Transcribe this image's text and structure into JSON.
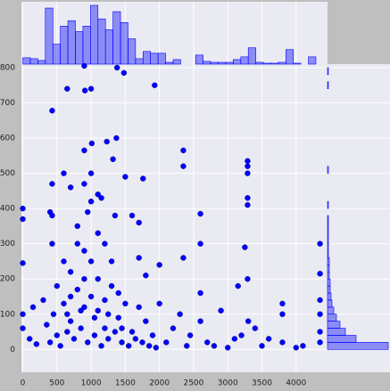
{
  "chart_data": [
    {
      "type": "scatter",
      "color": "#0000ff",
      "grid": true,
      "xlim": [
        -20,
        4460
      ],
      "ylim": [
        -65,
        810
      ],
      "xticks": [
        0,
        500,
        1000,
        1500,
        2000,
        2500,
        3000,
        3500,
        4000
      ],
      "yticks": [
        0,
        100,
        200,
        300,
        400,
        500,
        600,
        700,
        800
      ],
      "x": [
        900,
        1380,
        1480,
        650,
        910,
        1000,
        1930,
        430,
        1010,
        1230,
        1370,
        900,
        1320,
        2350,
        2350,
        3290,
        3290,
        3290,
        1500,
        1760,
        600,
        1000,
        900,
        700,
        430,
        1100,
        1150,
        1000,
        0,
        0,
        400,
        430,
        950,
        1350,
        2600,
        1600,
        3290,
        3290,
        1700,
        800,
        4350,
        2600,
        3250,
        430,
        1200,
        2350,
        600,
        1700,
        0,
        3150,
        3290,
        4350,
        2000,
        900,
        1100,
        3800,
        3800,
        4350,
        4350,
        2600,
        2900,
        3100,
        3400,
        2450,
        1800,
        700,
        300,
        150,
        0,
        0,
        100,
        200,
        350,
        500,
        600,
        700,
        800,
        900,
        1000,
        1100,
        1200,
        1300,
        1400,
        1500,
        1600,
        1700,
        1800,
        1900,
        2000,
        2100,
        2200,
        2300,
        2400,
        2600,
        2700,
        2800,
        3000,
        3200,
        3300,
        3500,
        3600,
        3800,
        4000,
        4100,
        4350,
        4350,
        400,
        500,
        550,
        650,
        750,
        850,
        950,
        1050,
        1150,
        1250,
        1350,
        1450,
        1550,
        1650,
        1750,
        1850,
        1950,
        450,
        650,
        850,
        1050,
        1250,
        1450,
        1000,
        800,
        1300,
        1100,
        900,
        700,
        1200,
        1400
      ],
      "y": [
        805,
        800,
        785,
        740,
        735,
        740,
        750,
        678,
        585,
        590,
        600,
        565,
        540,
        565,
        520,
        535,
        520,
        500,
        490,
        485,
        500,
        500,
        470,
        460,
        470,
        440,
        430,
        420,
        400,
        370,
        390,
        380,
        390,
        380,
        385,
        380,
        430,
        410,
        360,
        350,
        300,
        300,
        290,
        300,
        300,
        260,
        250,
        260,
        245,
        180,
        200,
        215,
        240,
        280,
        330,
        130,
        100,
        140,
        100,
        160,
        110,
        30,
        60,
        40,
        210,
        220,
        140,
        120,
        100,
        60,
        30,
        15,
        70,
        180,
        130,
        80,
        170,
        200,
        150,
        110,
        60,
        180,
        90,
        130,
        50,
        120,
        80,
        40,
        130,
        20,
        60,
        100,
        10,
        80,
        20,
        10,
        5,
        40,
        80,
        10,
        30,
        20,
        5,
        10,
        50,
        20,
        20,
        40,
        10,
        50,
        30,
        60,
        20,
        40,
        10,
        30,
        50,
        20,
        10,
        30,
        20,
        10,
        5,
        100,
        100,
        110,
        90,
        100,
        60,
        250,
        300,
        250,
        200,
        120,
        150,
        140,
        160
      ]
    },
    {
      "type": "histogram",
      "orientation": "vertical",
      "color": "#0000ff",
      "bins": [
        0,
        110,
        220,
        330,
        440,
        550,
        660,
        770,
        880,
        990,
        1100,
        1210,
        1320,
        1430,
        1540,
        1650,
        1760,
        1870,
        1980,
        2090,
        2200,
        2310,
        2420,
        2530,
        2640,
        2750,
        2860,
        2970,
        3080,
        3190,
        3300,
        3410,
        3520,
        3630,
        3740,
        3850,
        3960,
        4070,
        4180,
        4290,
        4400
      ],
      "counts": [
        7,
        6,
        4,
        62,
        22,
        42,
        48,
        36,
        42,
        65,
        50,
        38,
        58,
        46,
        28,
        6,
        14,
        12,
        12,
        2,
        5,
        0,
        0,
        10,
        3,
        2,
        2,
        2,
        5,
        8,
        18,
        2,
        1,
        1,
        2,
        16,
        1,
        0,
        8,
        0
      ]
    },
    {
      "type": "histogram",
      "orientation": "horizontal",
      "color": "#0000ff",
      "bins": [
        0,
        20,
        40,
        60,
        80,
        100,
        120,
        140,
        160,
        180,
        200,
        220,
        240,
        260,
        280,
        300,
        320,
        340,
        360,
        380,
        400,
        420,
        440,
        460,
        480,
        500,
        520,
        540,
        560,
        580,
        600,
        620,
        640,
        660,
        680,
        700,
        720,
        740,
        760,
        780,
        800
      ],
      "counts": [
        68,
        32,
        20,
        14,
        10,
        7,
        5,
        4,
        3,
        3,
        2,
        2,
        2,
        1,
        1,
        1,
        1,
        1,
        1,
        0,
        1,
        0,
        0,
        0,
        0,
        1,
        0,
        0,
        0,
        0,
        0,
        0,
        0,
        0,
        0,
        0,
        0,
        1,
        0,
        1
      ]
    }
  ]
}
